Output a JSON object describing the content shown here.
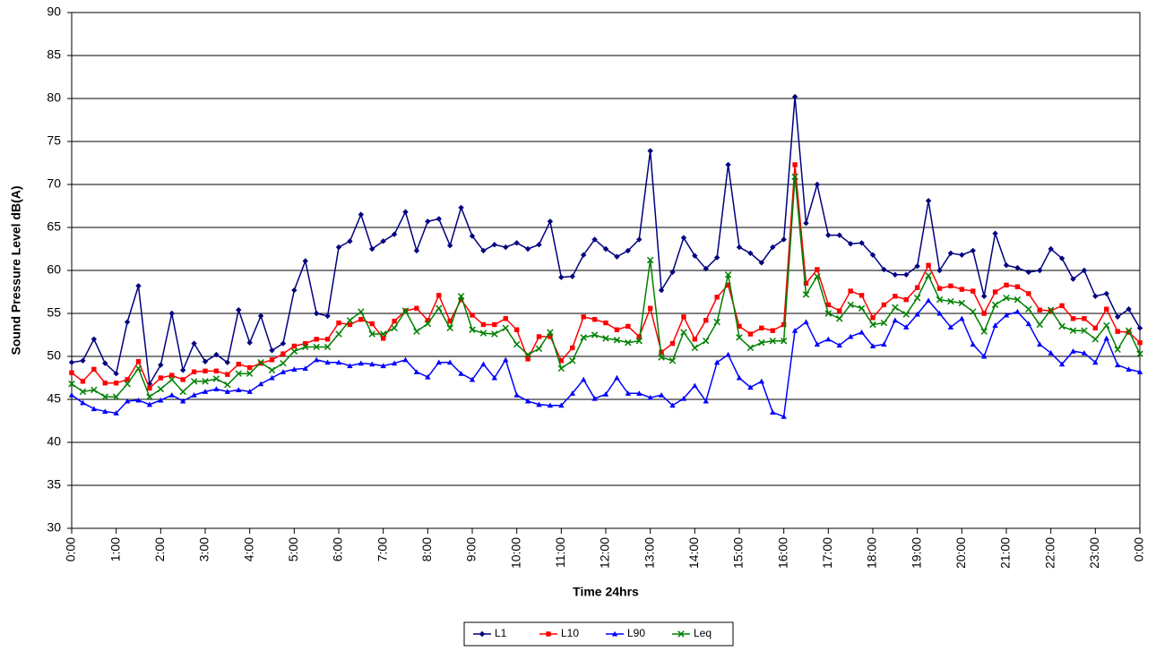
{
  "chart_data": {
    "type": "line",
    "x_label": "Time 24hrs",
    "y_label": "Sound Pressure Level dB(A)",
    "x": [
      0,
      0.25,
      0.5,
      0.75,
      1,
      1.25,
      1.5,
      1.75,
      2,
      2.25,
      2.5,
      2.75,
      3,
      3.25,
      3.5,
      3.75,
      4,
      4.25,
      4.5,
      4.75,
      5,
      5.25,
      5.5,
      5.75,
      6,
      6.25,
      6.5,
      6.75,
      7,
      7.25,
      7.5,
      7.75,
      8,
      8.25,
      8.5,
      8.75,
      9,
      9.25,
      9.5,
      9.75,
      10,
      10.25,
      10.5,
      10.75,
      11,
      11.25,
      11.5,
      11.75,
      12,
      12.25,
      12.5,
      12.75,
      13,
      13.25,
      13.5,
      13.75,
      14,
      14.25,
      14.5,
      14.75,
      15,
      15.25,
      15.5,
      15.75,
      16,
      16.25,
      16.5,
      16.75,
      17,
      17.25,
      17.5,
      17.75,
      18,
      18.25,
      18.5,
      18.75,
      19,
      19.25,
      19.5,
      19.75,
      20,
      20.25,
      20.5,
      20.75,
      21,
      21.25,
      21.5,
      21.75,
      22,
      22.25,
      22.5,
      22.75,
      23,
      23.25,
      23.5,
      23.75,
      24
    ],
    "xlim": [
      0,
      24
    ],
    "xticks": [
      {
        "value": 0,
        "label": "0:00"
      },
      {
        "value": 1,
        "label": "1:00"
      },
      {
        "value": 2,
        "label": "2:00"
      },
      {
        "value": 3,
        "label": "3:00"
      },
      {
        "value": 4,
        "label": "4:00"
      },
      {
        "value": 5,
        "label": "5:00"
      },
      {
        "value": 6,
        "label": "6:00"
      },
      {
        "value": 7,
        "label": "7:00"
      },
      {
        "value": 8,
        "label": "8:00"
      },
      {
        "value": 9,
        "label": "9:00"
      },
      {
        "value": 10,
        "label": "10:00"
      },
      {
        "value": 11,
        "label": "11:00"
      },
      {
        "value": 12,
        "label": "12:00"
      },
      {
        "value": 13,
        "label": "13:00"
      },
      {
        "value": 14,
        "label": "14:00"
      },
      {
        "value": 15,
        "label": "15:00"
      },
      {
        "value": 16,
        "label": "16:00"
      },
      {
        "value": 17,
        "label": "17:00"
      },
      {
        "value": 18,
        "label": "18:00"
      },
      {
        "value": 19,
        "label": "19:00"
      },
      {
        "value": 20,
        "label": "20:00"
      },
      {
        "value": 21,
        "label": "21:00"
      },
      {
        "value": 22,
        "label": "22:00"
      },
      {
        "value": 23,
        "label": "23:00"
      },
      {
        "value": 24,
        "label": "0:00"
      }
    ],
    "ylim": [
      30,
      90
    ],
    "yticks": [
      30,
      35,
      40,
      45,
      50,
      55,
      60,
      65,
      70,
      75,
      80,
      85,
      90
    ],
    "grid": true,
    "legend": "bottom",
    "series": [
      {
        "name": "L1",
        "color": "#000080",
        "marker": "diamond",
        "values": [
          49.3,
          49.5,
          52.0,
          49.2,
          48.0,
          54.0,
          58.2,
          46.8,
          49.0,
          55.0,
          48.4,
          51.5,
          49.4,
          50.2,
          49.3,
          55.4,
          51.6,
          54.7,
          50.7,
          51.5,
          57.7,
          61.1,
          55.0,
          54.7,
          62.7,
          63.4,
          66.5,
          62.5,
          63.4,
          64.2,
          66.8,
          62.3,
          65.7,
          66.0,
          62.9,
          67.3,
          64.0,
          62.3,
          63.0,
          62.7,
          63.2,
          62.5,
          63.0,
          65.7,
          59.2,
          59.3,
          61.8,
          63.6,
          62.5,
          61.6,
          62.3,
          63.6,
          73.9,
          57.7,
          59.8,
          63.8,
          61.7,
          60.2,
          61.5,
          72.3,
          62.7,
          62.0,
          60.9,
          62.7,
          63.6,
          80.2,
          65.5,
          70.0,
          64.1,
          64.1,
          63.1,
          63.2,
          61.8,
          60.1,
          59.5,
          59.5,
          60.5,
          68.1,
          60.0,
          62.0,
          61.8,
          62.3,
          57.0,
          64.3,
          60.6,
          60.3,
          59.8,
          60.0,
          62.5,
          61.4,
          59.0,
          60.0,
          57.0,
          57.3,
          54.6,
          55.5,
          53.3
        ]
      },
      {
        "name": "L10",
        "color": "#ff0000",
        "marker": "square",
        "values": [
          48.1,
          47.1,
          48.5,
          46.9,
          46.9,
          47.3,
          49.4,
          46.3,
          47.5,
          47.8,
          47.3,
          48.2,
          48.3,
          48.3,
          47.9,
          49.1,
          48.7,
          49.2,
          49.6,
          50.3,
          51.2,
          51.5,
          52.0,
          52.0,
          53.9,
          53.7,
          54.3,
          53.8,
          52.1,
          54.1,
          55.3,
          55.6,
          54.2,
          57.1,
          54.1,
          56.6,
          54.8,
          53.7,
          53.7,
          54.4,
          53.1,
          49.7,
          52.3,
          52.3,
          49.5,
          51.0,
          54.6,
          54.3,
          53.9,
          53.1,
          53.5,
          52.3,
          55.6,
          50.5,
          51.5,
          54.6,
          52.0,
          54.2,
          56.9,
          58.3,
          53.5,
          52.6,
          53.3,
          53.0,
          53.7,
          72.3,
          58.5,
          60.1,
          56.0,
          55.3,
          57.6,
          57.1,
          54.5,
          56.0,
          57.0,
          56.6,
          58.0,
          60.6,
          57.9,
          58.2,
          57.8,
          57.6,
          55.0,
          57.5,
          58.3,
          58.1,
          57.3,
          55.4,
          55.3,
          55.9,
          54.4,
          54.4,
          53.3,
          55.5,
          52.9,
          52.8,
          51.6
        ]
      },
      {
        "name": "L90",
        "color": "#0000ff",
        "marker": "triangle",
        "values": [
          45.5,
          44.6,
          43.9,
          43.6,
          43.4,
          44.8,
          44.9,
          44.4,
          44.9,
          45.5,
          44.8,
          45.5,
          45.9,
          46.2,
          45.9,
          46.1,
          45.9,
          46.8,
          47.5,
          48.2,
          48.5,
          48.6,
          49.6,
          49.3,
          49.3,
          48.9,
          49.2,
          49.1,
          48.9,
          49.2,
          49.6,
          48.2,
          47.6,
          49.3,
          49.3,
          48.0,
          47.3,
          49.1,
          47.5,
          49.6,
          45.5,
          44.8,
          44.4,
          44.3,
          44.3,
          45.7,
          47.3,
          45.1,
          45.6,
          47.5,
          45.7,
          45.7,
          45.2,
          45.5,
          44.3,
          45.1,
          46.6,
          44.8,
          49.3,
          50.2,
          47.5,
          46.4,
          47.1,
          43.5,
          43.0,
          53.0,
          54.0,
          51.4,
          52.0,
          51.3,
          52.3,
          52.8,
          51.2,
          51.4,
          54.2,
          53.4,
          54.9,
          56.5,
          55.0,
          53.4,
          54.4,
          51.4,
          50.0,
          53.6,
          54.8,
          55.2,
          53.8,
          51.4,
          50.4,
          49.1,
          50.6,
          50.4,
          49.3,
          52.1,
          49.0,
          48.5,
          48.2
        ]
      },
      {
        "name": "Leq",
        "color": "#008000",
        "marker": "x",
        "values": [
          46.8,
          45.9,
          46.1,
          45.3,
          45.3,
          46.8,
          48.6,
          45.3,
          46.2,
          47.3,
          45.9,
          47.1,
          47.1,
          47.4,
          46.7,
          48.0,
          48.0,
          49.3,
          48.4,
          49.2,
          50.6,
          51.1,
          51.1,
          51.1,
          52.6,
          54.2,
          55.2,
          52.6,
          52.6,
          53.3,
          55.3,
          52.9,
          53.8,
          55.6,
          53.3,
          57.0,
          53.1,
          52.7,
          52.6,
          53.3,
          51.4,
          50.2,
          50.9,
          52.8,
          48.6,
          49.5,
          52.2,
          52.5,
          52.1,
          51.9,
          51.6,
          51.8,
          61.2,
          49.9,
          49.5,
          52.8,
          51.0,
          51.8,
          54.0,
          59.5,
          52.2,
          51.0,
          51.6,
          51.8,
          51.8,
          70.9,
          57.2,
          59.3,
          55.0,
          54.4,
          56.0,
          55.6,
          53.7,
          53.9,
          55.7,
          54.9,
          56.8,
          59.4,
          56.6,
          56.4,
          56.2,
          55.2,
          52.9,
          56.0,
          56.8,
          56.6,
          55.5,
          53.7,
          55.4,
          53.5,
          53.0,
          53.0,
          52.0,
          53.6,
          50.8,
          53.0,
          50.3
        ]
      }
    ]
  }
}
